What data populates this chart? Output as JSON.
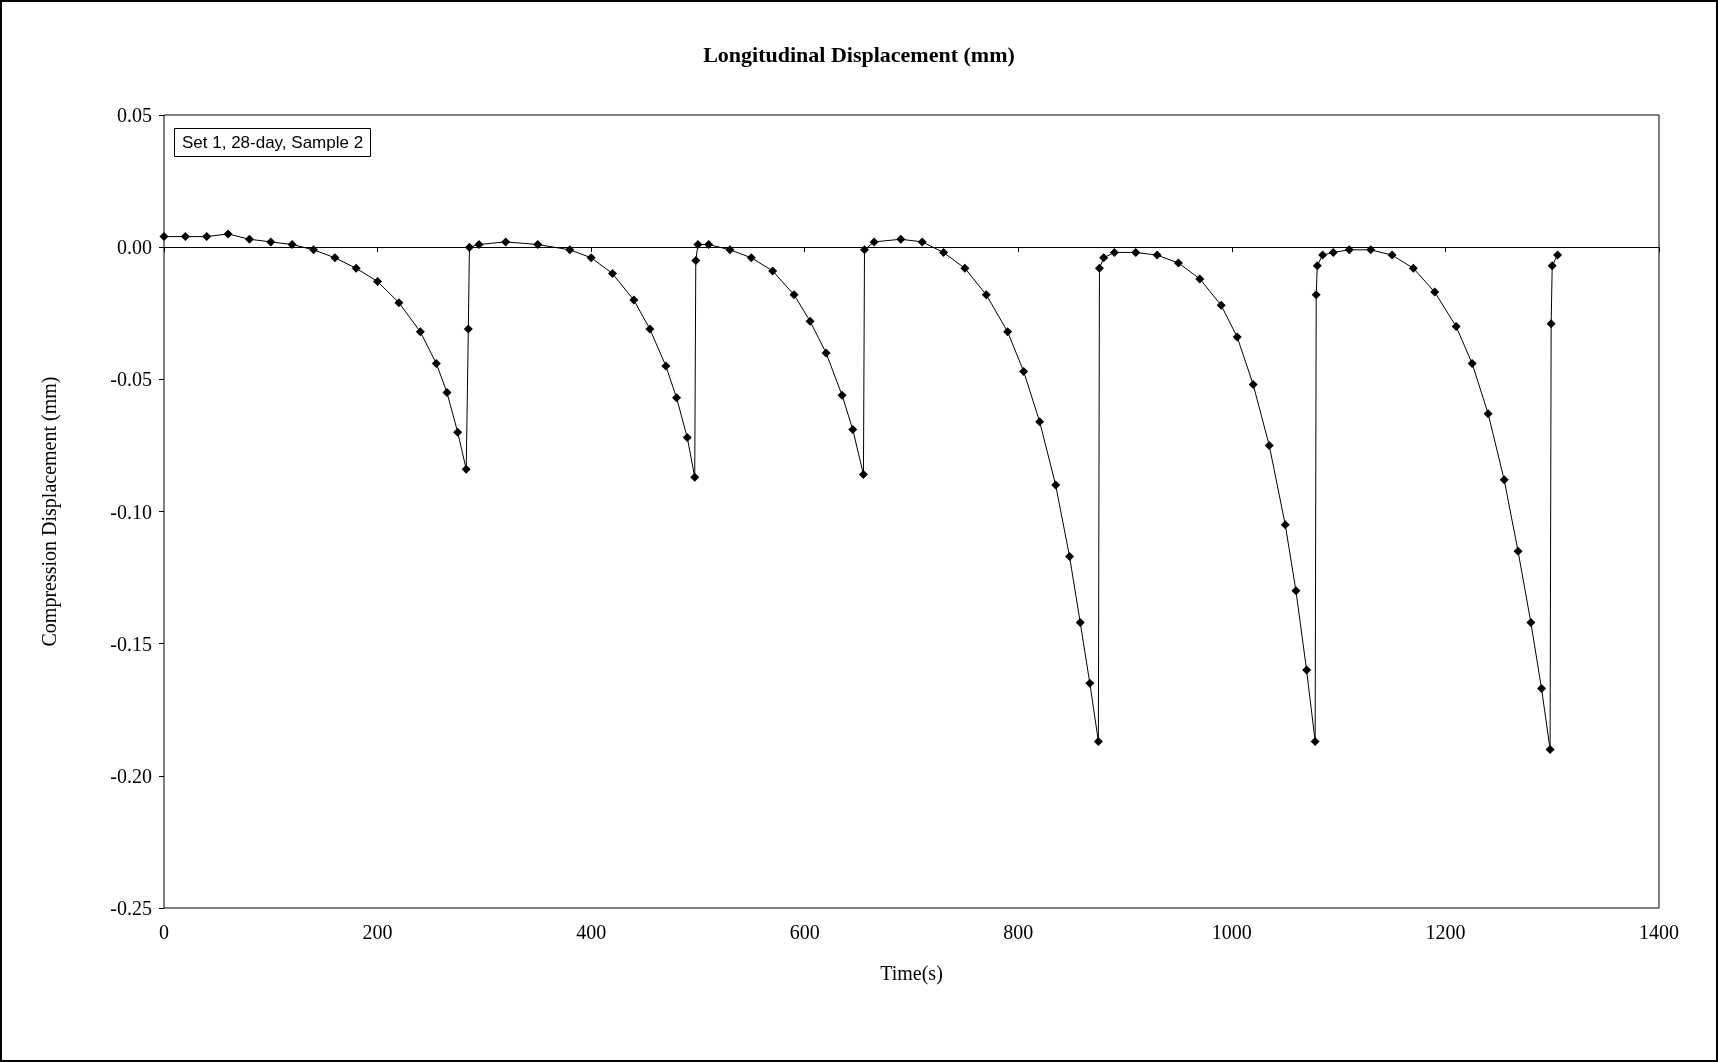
{
  "chart_data": {
    "type": "line",
    "title": "Longitudinal Displacement (mm)",
    "xlabel": "Time(s)",
    "ylabel": "Compression Displacement (mm)",
    "annotations": [
      "Set 1, 28-day, Sample 2"
    ],
    "xlim": [
      0,
      1400
    ],
    "xticks": [
      0,
      200,
      400,
      600,
      800,
      1000,
      1200,
      1400
    ],
    "ylim": [
      -0.25,
      0.05
    ],
    "yticks": [
      {
        "value": -0.25,
        "label": "-0.25"
      },
      {
        "value": -0.2,
        "label": "-0.20"
      },
      {
        "value": -0.15,
        "label": "-0.15"
      },
      {
        "value": -0.1,
        "label": "-0.10"
      },
      {
        "value": -0.05,
        "label": "-0.05"
      },
      {
        "value": 0,
        "label": "0.00"
      },
      {
        "value": 0.05,
        "label": "0.05"
      }
    ],
    "grid": false,
    "marker": "diamond",
    "line_style": "solid",
    "ref_lines": [
      {
        "axis": "y",
        "value": 0,
        "label": null,
        "color": "#000000"
      }
    ],
    "series": [
      {
        "color": "#000000",
        "x": [
          0,
          20,
          40,
          60,
          80,
          100,
          120,
          140,
          160,
          180,
          200,
          220,
          240,
          255,
          265,
          275,
          283,
          285,
          286,
          295,
          320,
          350,
          380,
          400,
          420,
          440,
          455,
          470,
          480,
          490,
          497,
          498,
          500,
          510,
          530,
          550,
          570,
          590,
          605,
          620,
          635,
          645,
          655,
          656,
          665,
          690,
          710,
          730,
          750,
          770,
          790,
          805,
          820,
          835,
          848,
          858,
          867,
          875,
          876,
          880,
          890,
          910,
          930,
          950,
          970,
          990,
          1005,
          1020,
          1035,
          1050,
          1060,
          1070,
          1078,
          1079,
          1080,
          1085,
          1095,
          1110,
          1130,
          1150,
          1170,
          1190,
          1210,
          1225,
          1240,
          1255,
          1268,
          1280,
          1290,
          1298,
          1299,
          1300,
          1305
        ],
        "values": [
          0.004,
          0.004,
          0.004,
          0.005,
          0.003,
          0.002,
          0.001,
          -0.001,
          -0.004,
          -0.008,
          -0.013,
          -0.021,
          -0.032,
          -0.044,
          -0.055,
          -0.07,
          -0.084,
          -0.031,
          0.0,
          0.001,
          0.002,
          0.001,
          -0.001,
          -0.004,
          -0.01,
          -0.02,
          -0.031,
          -0.045,
          -0.057,
          -0.072,
          -0.087,
          -0.005,
          0.001,
          0.001,
          -0.001,
          -0.004,
          -0.009,
          -0.018,
          -0.028,
          -0.04,
          -0.056,
          -0.069,
          -0.086,
          -0.001,
          0.002,
          0.003,
          0.002,
          -0.002,
          -0.008,
          -0.018,
          -0.032,
          -0.047,
          -0.066,
          -0.09,
          -0.117,
          -0.142,
          -0.165,
          -0.187,
          -0.008,
          -0.004,
          -0.002,
          -0.002,
          -0.003,
          -0.006,
          -0.012,
          -0.022,
          -0.034,
          -0.052,
          -0.075,
          -0.105,
          -0.13,
          -0.16,
          -0.187,
          -0.018,
          -0.007,
          -0.003,
          -0.002,
          -0.001,
          -0.001,
          -0.003,
          -0.008,
          -0.017,
          -0.03,
          -0.044,
          -0.063,
          -0.088,
          -0.115,
          -0.142,
          -0.167,
          -0.19,
          -0.029,
          -0.007,
          -0.003
        ]
      }
    ]
  }
}
